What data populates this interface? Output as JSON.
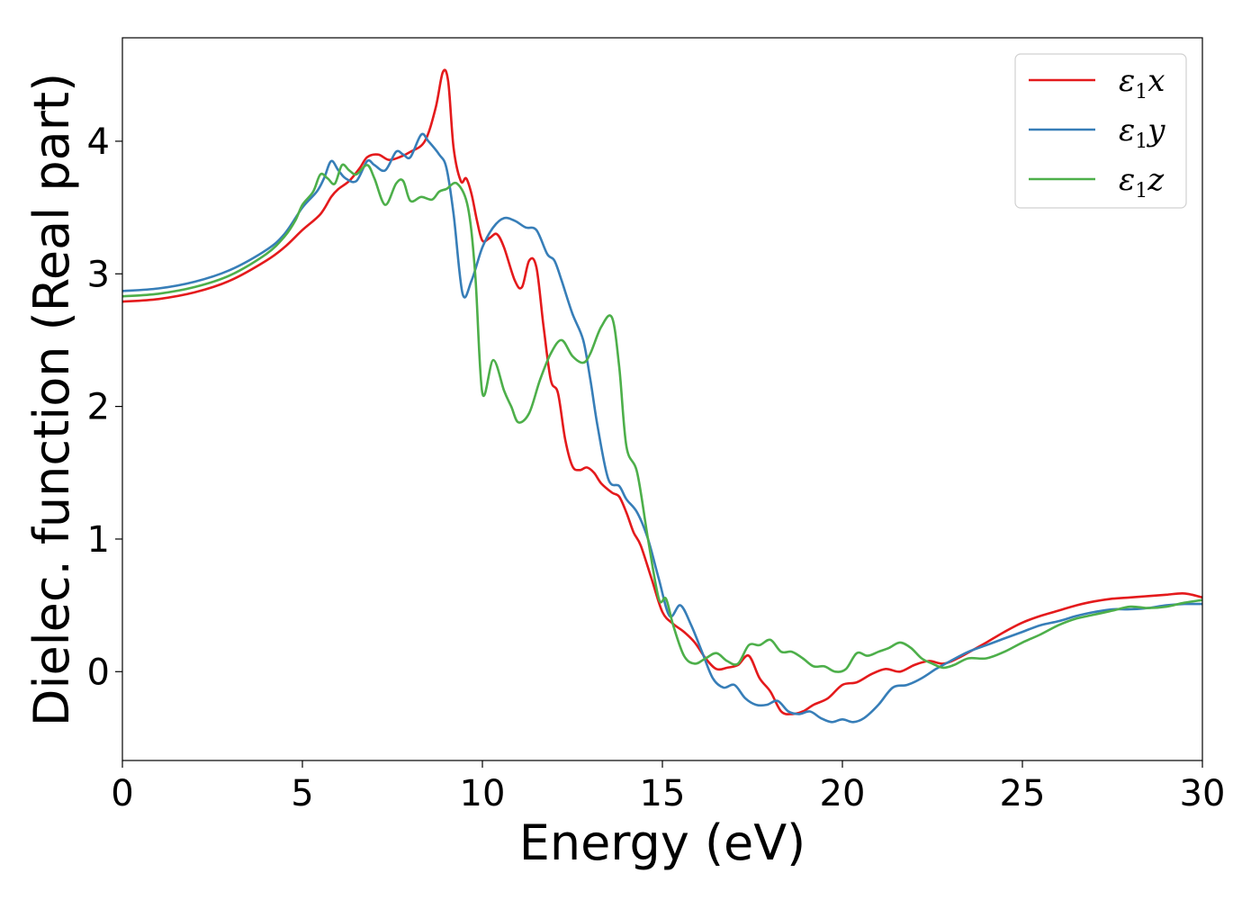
{
  "chart_data": {
    "type": "line",
    "xlabel": "Energy (eV)",
    "ylabel": "Dielec. function (Real part)",
    "xlim": [
      0,
      30
    ],
    "ylim": [
      -0.67,
      4.78
    ],
    "xticks": [
      0,
      5,
      10,
      15,
      20,
      25,
      30
    ],
    "yticks": [
      0,
      1,
      2,
      3,
      4
    ],
    "grid": false,
    "legend_position": "top-right",
    "series": [
      {
        "name": "ε₁x",
        "legend_base": "ε",
        "legend_sub": "1",
        "legend_var": "x",
        "color": "#e41a1c",
        "x": [
          0,
          1,
          2,
          3,
          4,
          4.5,
          5,
          5.5,
          5.8,
          6.0,
          6.3,
          6.6,
          6.8,
          7.1,
          7.4,
          7.7,
          8.0,
          8.4,
          8.7,
          8.9,
          9.05,
          9.2,
          9.4,
          9.55,
          9.7,
          9.85,
          10.0,
          10.2,
          10.4,
          10.6,
          10.9,
          11.1,
          11.3,
          11.5,
          11.7,
          11.9,
          12.1,
          12.3,
          12.5,
          12.7,
          12.9,
          13.1,
          13.3,
          13.6,
          13.8,
          14.0,
          14.2,
          14.4,
          14.7,
          15.0,
          15.3,
          15.6,
          15.9,
          16.2,
          16.5,
          16.8,
          17.1,
          17.4,
          17.7,
          18.0,
          18.3,
          18.6,
          18.9,
          19.2,
          19.6,
          20.0,
          20.4,
          20.8,
          21.2,
          21.6,
          22.0,
          22.4,
          22.8,
          23.2,
          23.6,
          24.0,
          24.5,
          25.0,
          25.5,
          26.0,
          26.5,
          27.0,
          27.5,
          28.0,
          28.5,
          29.0,
          29.5,
          30.0
        ],
        "values": [
          2.79,
          2.81,
          2.86,
          2.95,
          3.1,
          3.2,
          3.33,
          3.45,
          3.58,
          3.64,
          3.7,
          3.8,
          3.88,
          3.9,
          3.86,
          3.88,
          3.92,
          4.0,
          4.25,
          4.52,
          4.45,
          3.95,
          3.7,
          3.72,
          3.6,
          3.4,
          3.25,
          3.27,
          3.3,
          3.2,
          2.95,
          2.9,
          3.1,
          3.05,
          2.6,
          2.2,
          2.1,
          1.75,
          1.55,
          1.52,
          1.54,
          1.5,
          1.42,
          1.35,
          1.32,
          1.2,
          1.05,
          0.95,
          0.7,
          0.45,
          0.36,
          0.3,
          0.22,
          0.1,
          0.02,
          0.03,
          0.05,
          0.12,
          -0.05,
          -0.15,
          -0.3,
          -0.32,
          -0.3,
          -0.25,
          -0.2,
          -0.1,
          -0.08,
          -0.02,
          0.02,
          0.0,
          0.05,
          0.08,
          0.06,
          0.1,
          0.16,
          0.22,
          0.3,
          0.37,
          0.42,
          0.46,
          0.5,
          0.53,
          0.55,
          0.56,
          0.57,
          0.58,
          0.59,
          0.56
        ]
      },
      {
        "name": "ε₁y",
        "legend_base": "ε",
        "legend_sub": "1",
        "legend_var": "y",
        "color": "#377eb8",
        "x": [
          0,
          1,
          2,
          3,
          4,
          4.5,
          5,
          5.4,
          5.6,
          5.8,
          6.0,
          6.2,
          6.5,
          6.8,
          7.0,
          7.3,
          7.6,
          7.8,
          8.0,
          8.3,
          8.5,
          8.8,
          9.0,
          9.2,
          9.45,
          9.7,
          10.0,
          10.3,
          10.6,
          10.9,
          11.2,
          11.5,
          11.8,
          12.0,
          12.2,
          12.5,
          12.8,
          13.0,
          13.2,
          13.5,
          13.8,
          14.0,
          14.3,
          14.6,
          14.9,
          15.2,
          15.5,
          15.8,
          16.1,
          16.4,
          16.7,
          17.0,
          17.3,
          17.6,
          17.9,
          18.2,
          18.5,
          18.8,
          19.1,
          19.4,
          19.7,
          20.0,
          20.3,
          20.6,
          21.0,
          21.4,
          21.8,
          22.2,
          22.6,
          23.0,
          23.5,
          24.0,
          24.5,
          25.0,
          25.5,
          26.0,
          26.5,
          27.0,
          27.5,
          28.0,
          28.5,
          29.0,
          29.5,
          30.0
        ],
        "values": [
          2.87,
          2.89,
          2.94,
          3.03,
          3.18,
          3.3,
          3.5,
          3.62,
          3.72,
          3.85,
          3.78,
          3.72,
          3.7,
          3.85,
          3.82,
          3.78,
          3.92,
          3.9,
          3.88,
          4.05,
          4.0,
          3.9,
          3.8,
          3.45,
          2.85,
          2.95,
          3.2,
          3.35,
          3.42,
          3.4,
          3.35,
          3.33,
          3.15,
          3.1,
          2.95,
          2.7,
          2.5,
          2.2,
          1.85,
          1.45,
          1.4,
          1.3,
          1.2,
          1.0,
          0.7,
          0.42,
          0.5,
          0.35,
          0.15,
          -0.05,
          -0.12,
          -0.1,
          -0.2,
          -0.25,
          -0.25,
          -0.22,
          -0.3,
          -0.32,
          -0.3,
          -0.35,
          -0.38,
          -0.36,
          -0.38,
          -0.35,
          -0.25,
          -0.12,
          -0.1,
          -0.05,
          0.02,
          0.08,
          0.15,
          0.2,
          0.25,
          0.3,
          0.35,
          0.38,
          0.42,
          0.45,
          0.47,
          0.47,
          0.48,
          0.5,
          0.51,
          0.51
        ]
      },
      {
        "name": "ε₁z",
        "legend_base": "ε",
        "legend_sub": "1",
        "legend_var": "z",
        "color": "#4daf4a",
        "x": [
          0,
          1,
          2,
          3,
          4,
          4.5,
          4.8,
          5.0,
          5.3,
          5.5,
          5.7,
          5.9,
          6.1,
          6.3,
          6.5,
          6.8,
          7.0,
          7.3,
          7.6,
          7.8,
          8.0,
          8.3,
          8.6,
          8.8,
          9.0,
          9.3,
          9.6,
          9.8,
          10.0,
          10.3,
          10.6,
          10.8,
          11.0,
          11.3,
          11.6,
          11.9,
          12.2,
          12.5,
          12.8,
          13.0,
          13.3,
          13.6,
          13.8,
          14.0,
          14.3,
          14.6,
          14.9,
          15.1,
          15.3,
          15.6,
          15.9,
          16.2,
          16.5,
          16.8,
          17.1,
          17.4,
          17.7,
          18.0,
          18.3,
          18.6,
          18.9,
          19.2,
          19.5,
          19.8,
          20.1,
          20.4,
          20.7,
          21.0,
          21.3,
          21.6,
          21.9,
          22.2,
          22.5,
          22.8,
          23.1,
          23.5,
          24.0,
          24.5,
          25.0,
          25.5,
          26.0,
          26.5,
          27.0,
          27.5,
          28.0,
          28.5,
          29.0,
          29.5,
          30.0
        ],
        "values": [
          2.83,
          2.85,
          2.9,
          2.99,
          3.15,
          3.28,
          3.4,
          3.52,
          3.62,
          3.75,
          3.72,
          3.68,
          3.82,
          3.78,
          3.75,
          3.82,
          3.72,
          3.52,
          3.68,
          3.7,
          3.55,
          3.58,
          3.56,
          3.62,
          3.64,
          3.68,
          3.5,
          3.0,
          2.1,
          2.35,
          2.12,
          2.0,
          1.88,
          1.95,
          2.2,
          2.4,
          2.5,
          2.38,
          2.33,
          2.4,
          2.6,
          2.67,
          2.3,
          1.7,
          1.5,
          1.0,
          0.55,
          0.55,
          0.35,
          0.12,
          0.06,
          0.1,
          0.14,
          0.08,
          0.06,
          0.2,
          0.2,
          0.24,
          0.15,
          0.15,
          0.1,
          0.04,
          0.04,
          0.0,
          0.02,
          0.14,
          0.12,
          0.15,
          0.18,
          0.22,
          0.18,
          0.1,
          0.06,
          0.03,
          0.05,
          0.1,
          0.1,
          0.15,
          0.22,
          0.28,
          0.35,
          0.4,
          0.43,
          0.46,
          0.49,
          0.48,
          0.49,
          0.52,
          0.54
        ]
      }
    ]
  }
}
